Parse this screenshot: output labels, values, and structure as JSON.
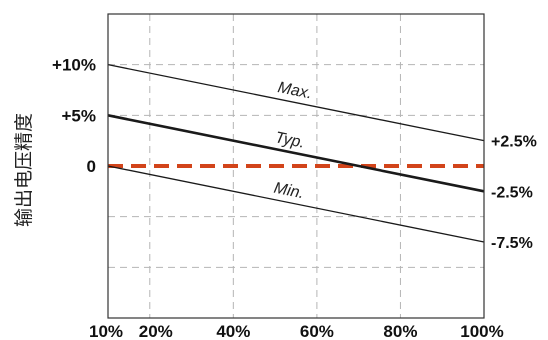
{
  "chart_data": {
    "type": "line",
    "ylabel": "输出电压精度",
    "xlim": [
      10,
      100
    ],
    "ylim": [
      -15,
      15
    ],
    "grid": true,
    "legend": "none",
    "x_ticks": [
      {
        "value": 10,
        "label": "10%"
      },
      {
        "value": 20,
        "label": "20%"
      },
      {
        "value": 40,
        "label": "40%"
      },
      {
        "value": 60,
        "label": "60%"
      },
      {
        "value": 80,
        "label": "80%"
      },
      {
        "value": 100,
        "label": "100%"
      }
    ],
    "y_ticks": [
      {
        "value": 10,
        "label": "+10%"
      },
      {
        "value": 5,
        "label": "+5%"
      },
      {
        "value": 0,
        "label": "0"
      }
    ],
    "series": [
      {
        "name": "Max.",
        "x": [
          10,
          100
        ],
        "y": [
          10,
          2.5
        ],
        "right_label": "+2.5%",
        "color": "#1a1a1a",
        "style": "solid-thin"
      },
      {
        "name": "Typ.",
        "x": [
          10,
          100
        ],
        "y": [
          5,
          -2.5
        ],
        "right_label": "-2.5%",
        "color": "#1a1a1a",
        "style": "solid-thick"
      },
      {
        "name": "Min.",
        "x": [
          10,
          100
        ],
        "y": [
          0,
          -7.5
        ],
        "right_label": "-7.5%",
        "color": "#1a1a1a",
        "style": "solid-thin"
      }
    ],
    "reference_line": {
      "y": 0,
      "color": "#d2441a",
      "style": "dashed"
    }
  }
}
